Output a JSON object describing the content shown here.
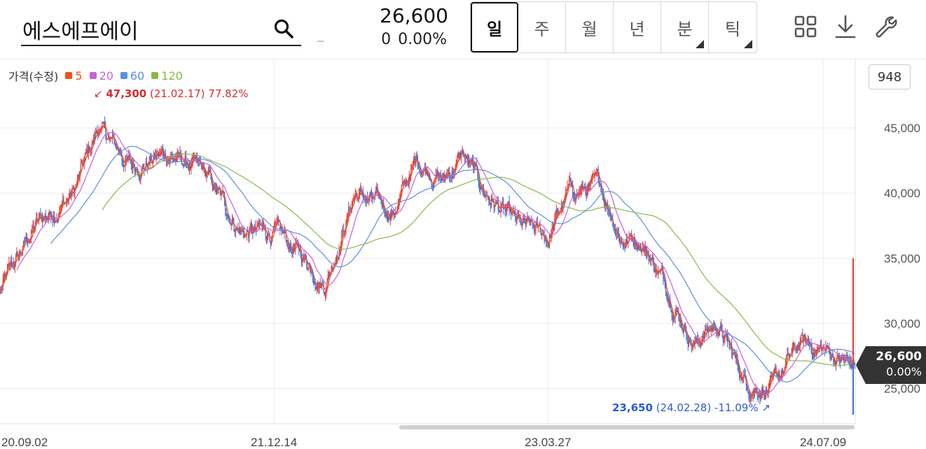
{
  "header": {
    "stock_name": "에스에프에이",
    "dash": "–",
    "price": "26,600",
    "change": "0",
    "change_pct": "0.00%"
  },
  "periods": [
    {
      "label": "일",
      "active": true,
      "has_menu": false
    },
    {
      "label": "주",
      "active": false,
      "has_menu": false
    },
    {
      "label": "월",
      "active": false,
      "has_menu": false
    },
    {
      "label": "년",
      "active": false,
      "has_menu": false
    },
    {
      "label": "분",
      "active": false,
      "has_menu": true
    },
    {
      "label": "틱",
      "active": false,
      "has_menu": true
    }
  ],
  "tools": [
    "grid-icon",
    "download-icon",
    "wrench-icon"
  ],
  "legend": {
    "title": "가격(수정)",
    "items": [
      {
        "label": "5",
        "color": "#f4511e"
      },
      {
        "label": "20",
        "color": "#c462d8"
      },
      {
        "label": "60",
        "color": "#5c8fd8"
      },
      {
        "label": "120",
        "color": "#8ab84a"
      }
    ]
  },
  "volume_badge": "948",
  "current": {
    "price": "26,600",
    "pct": "0.00%"
  },
  "chart_data": {
    "type": "candlestick",
    "title": "",
    "xlabel": "",
    "ylabel": "",
    "x_ticks": [
      "20.09.02",
      "21.12.14",
      "23.03.27",
      "24.07.09"
    ],
    "y_ticks": [
      "25,000",
      "30,000",
      "35,000",
      "40,000",
      "45,000"
    ],
    "y_tick_values": [
      25000,
      30000,
      35000,
      40000,
      45000
    ],
    "ylim": [
      22300,
      50200
    ],
    "x_range": [
      "20.09.02",
      "24.09.02"
    ],
    "up_color": "#e53935",
    "down_color": "#3d6fd8",
    "close_trend": [
      {
        "date": "20.09.02",
        "close": 32500
      },
      {
        "date": "20.11.01",
        "close": 37500
      },
      {
        "date": "21.01.05",
        "close": 40000
      },
      {
        "date": "21.02.17",
        "close": 45000
      },
      {
        "date": "21.04.15",
        "close": 42000
      },
      {
        "date": "21.06.15",
        "close": 43000
      },
      {
        "date": "21.08.15",
        "close": 41500
      },
      {
        "date": "21.10.20",
        "close": 37000
      },
      {
        "date": "21.12.14",
        "close": 37000
      },
      {
        "date": "22.02.15",
        "close": 34500
      },
      {
        "date": "22.03.10",
        "close": 33000
      },
      {
        "date": "22.05.01",
        "close": 40000
      },
      {
        "date": "22.07.05",
        "close": 38500
      },
      {
        "date": "22.08.15",
        "close": 42500
      },
      {
        "date": "22.10.01",
        "close": 41000
      },
      {
        "date": "22.11.01",
        "close": 43000
      },
      {
        "date": "22.12.10",
        "close": 40000
      },
      {
        "date": "23.02.01",
        "close": 37500
      },
      {
        "date": "23.03.27",
        "close": 36500
      },
      {
        "date": "23.05.01",
        "close": 40000
      },
      {
        "date": "23.06.25",
        "close": 40500
      },
      {
        "date": "23.08.01",
        "close": 36500
      },
      {
        "date": "23.09.01",
        "close": 36500
      },
      {
        "date": "23.10.15",
        "close": 33000
      },
      {
        "date": "23.12.01",
        "close": 28500
      },
      {
        "date": "24.01.10",
        "close": 30000
      },
      {
        "date": "24.02.28",
        "close": 25500
      },
      {
        "date": "24.04.15",
        "close": 25000
      },
      {
        "date": "24.06.01",
        "close": 28500
      },
      {
        "date": "24.07.09",
        "close": 28000
      },
      {
        "date": "24.09.02",
        "close": 26600
      }
    ],
    "moving_averages": [
      {
        "name": "5",
        "period": 5,
        "color": "#f4511e"
      },
      {
        "name": "20",
        "period": 20,
        "color": "#c462d8"
      },
      {
        "name": "60",
        "period": 60,
        "color": "#5c8fd8"
      },
      {
        "name": "120",
        "period": 120,
        "color": "#8ab84a"
      }
    ],
    "high_annotation": {
      "price": "47,300",
      "date": "(21.02.17)",
      "pct": "77.82%"
    },
    "low_annotation": {
      "price": "23,650",
      "date": "(24.02.28)",
      "pct": "-11.09%"
    },
    "current_price": 26600,
    "volume_spike_date": "24.09.02"
  }
}
